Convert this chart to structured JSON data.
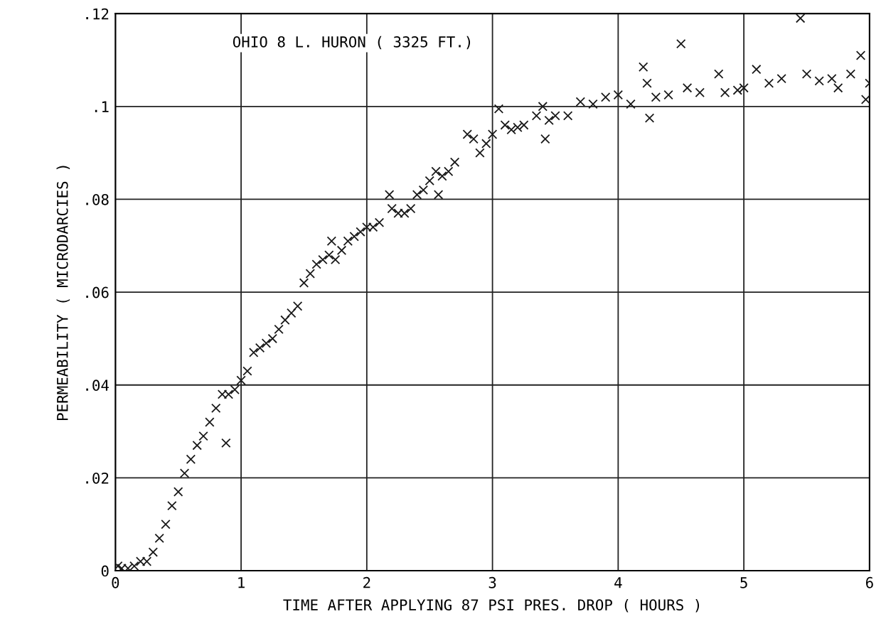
{
  "chart_data": {
    "type": "scatter",
    "xlabel": "TIME AFTER APPLYING 87 PSI PRES. DROP ( HOURS )",
    "ylabel": "PERMEABILITY ( MICRODARCIES )",
    "annotations": [
      "OHIO 8 L. HURON ( 3325 FT.)"
    ],
    "xlim": [
      0,
      6
    ],
    "xticks": [
      0,
      1,
      2,
      3,
      4,
      5,
      6
    ],
    "ylim": [
      0,
      0.12
    ],
    "yticks": [
      {
        "value": 0,
        "label": "0"
      },
      {
        "value": 0.02,
        "label": ".02"
      },
      {
        "value": 0.04,
        "label": ".04"
      },
      {
        "value": 0.06,
        "label": ".06"
      },
      {
        "value": 0.08,
        "label": ".08"
      },
      {
        "value": 0.1,
        "label": ".1"
      },
      {
        "value": 0.12,
        "label": ".12"
      }
    ],
    "grid": true,
    "marker": "cross",
    "series": [
      {
        "color": "#1a1a1a",
        "x": [
          0.02,
          0.05,
          0.1,
          0.15,
          0.2,
          0.25,
          0.3,
          0.35,
          0.4,
          0.45,
          0.5,
          0.55,
          0.6,
          0.65,
          0.7,
          0.75,
          0.8,
          0.85,
          0.88,
          0.9,
          0.95,
          1.0,
          1.05,
          1.1,
          1.15,
          1.2,
          1.25,
          1.3,
          1.35,
          1.4,
          1.45,
          1.5,
          1.55,
          1.6,
          1.65,
          1.7,
          1.72,
          1.75,
          1.8,
          1.85,
          1.9,
          1.95,
          2.0,
          2.05,
          2.1,
          2.18,
          2.2,
          2.25,
          2.3,
          2.35,
          2.4,
          2.45,
          2.5,
          2.55,
          2.57,
          2.6,
          2.65,
          2.7,
          2.8,
          2.85,
          2.9,
          2.95,
          3.0,
          3.05,
          3.1,
          3.15,
          3.2,
          3.25,
          3.35,
          3.4,
          3.42,
          3.45,
          3.5,
          3.6,
          3.7,
          3.8,
          3.9,
          4.0,
          4.1,
          4.2,
          4.23,
          4.25,
          4.3,
          4.4,
          4.5,
          4.55,
          4.65,
          4.8,
          4.85,
          4.95,
          5.0,
          5.1,
          5.2,
          5.3,
          5.45,
          5.5,
          5.6,
          5.7,
          5.75,
          5.85,
          5.93,
          5.97,
          6.0
        ],
        "values": [
          0.001,
          0.0005,
          0.0005,
          0.001,
          0.002,
          0.002,
          0.004,
          0.007,
          0.01,
          0.014,
          0.017,
          0.021,
          0.024,
          0.027,
          0.029,
          0.032,
          0.035,
          0.038,
          0.0275,
          0.038,
          0.039,
          0.041,
          0.043,
          0.047,
          0.048,
          0.049,
          0.05,
          0.052,
          0.054,
          0.0555,
          0.057,
          0.062,
          0.064,
          0.066,
          0.067,
          0.068,
          0.071,
          0.067,
          0.069,
          0.071,
          0.072,
          0.073,
          0.074,
          0.074,
          0.075,
          0.081,
          0.078,
          0.077,
          0.077,
          0.078,
          0.081,
          0.082,
          0.084,
          0.086,
          0.081,
          0.085,
          0.086,
          0.088,
          0.094,
          0.093,
          0.09,
          0.092,
          0.094,
          0.0995,
          0.096,
          0.095,
          0.0955,
          0.096,
          0.098,
          0.1,
          0.093,
          0.097,
          0.098,
          0.098,
          0.101,
          0.1005,
          0.102,
          0.1025,
          0.1005,
          0.1085,
          0.105,
          0.0975,
          0.102,
          0.1025,
          0.1135,
          0.104,
          0.103,
          0.107,
          0.103,
          0.1035,
          0.104,
          0.108,
          0.105,
          0.106,
          0.119,
          0.107,
          0.1055,
          0.106,
          0.104,
          0.107,
          0.111,
          0.1015,
          0.105
        ]
      }
    ]
  }
}
